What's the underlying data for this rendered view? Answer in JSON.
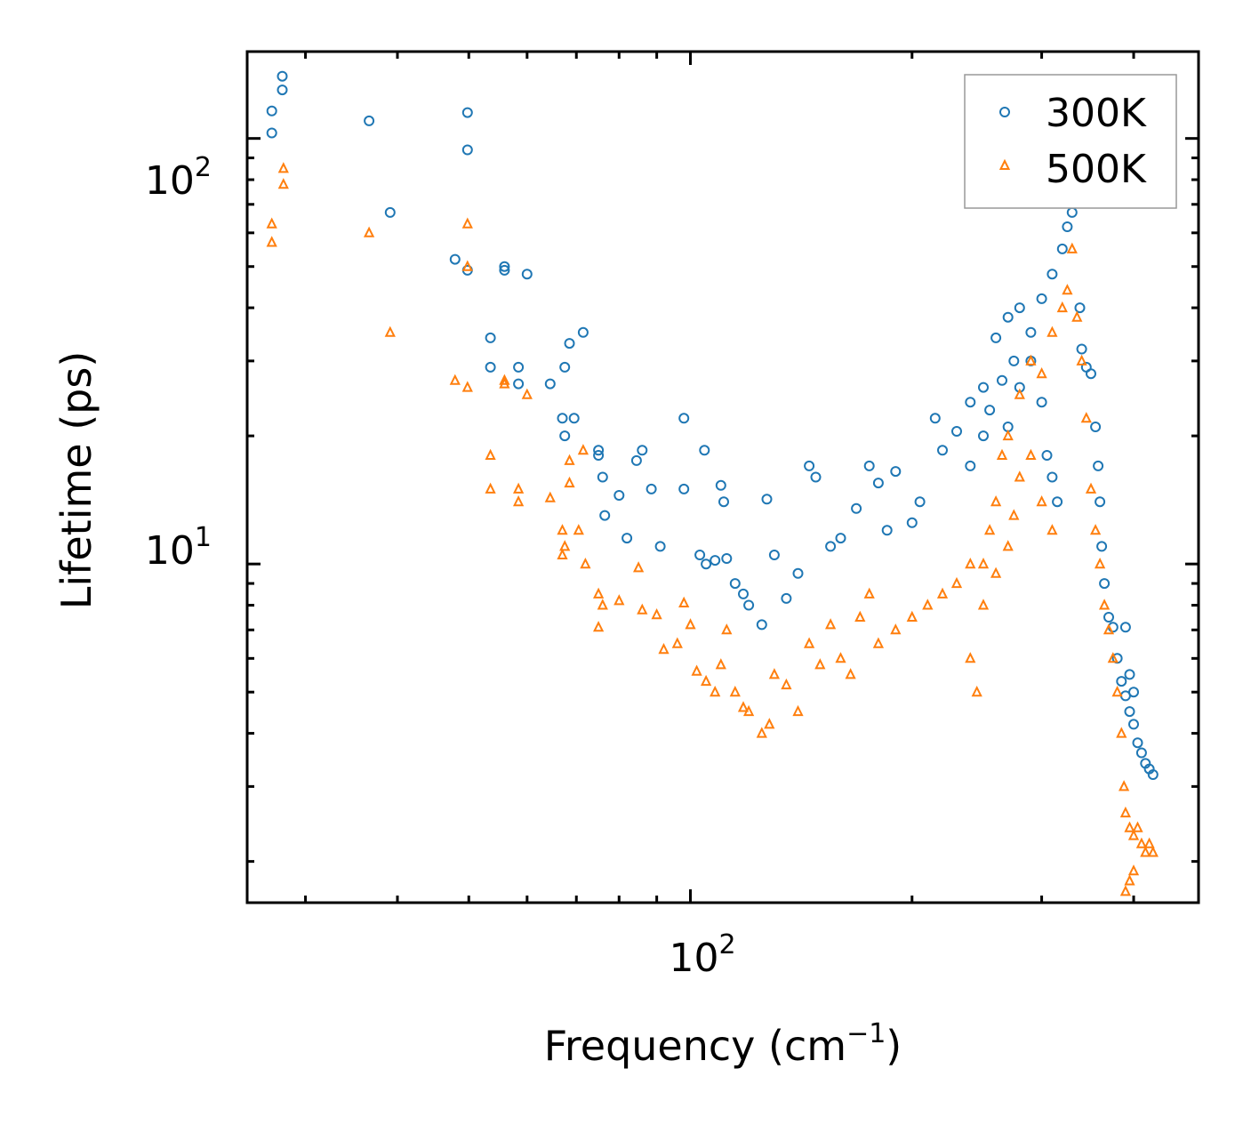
{
  "chart_data": {
    "type": "scatter",
    "title": "",
    "xlabel": "Frequency (cm",
    "xlabel_sup": "−1",
    "xlabel_end": ")",
    "ylabel": "Lifetime (ps)",
    "xscale": "log",
    "yscale": "log",
    "xlim": [
      25,
      490
    ],
    "ylim": [
      1.6,
      160
    ],
    "x_major_ticks": [
      {
        "value": 100,
        "base": "10",
        "exp": "2"
      }
    ],
    "y_major_ticks": [
      {
        "value": 10,
        "base": "10",
        "exp": "1"
      },
      {
        "value": 100,
        "base": "10",
        "exp": "2"
      }
    ],
    "legend_position": "top-right",
    "series": [
      {
        "name": "300K",
        "marker": "circle",
        "color": "#1f77b4",
        "points": [
          [
            27.0,
            103
          ],
          [
            27.0,
            116
          ],
          [
            27.9,
            140
          ],
          [
            27.9,
            130
          ],
          [
            36.6,
            110
          ],
          [
            39.1,
            67
          ],
          [
            47.9,
            52
          ],
          [
            49.8,
            94
          ],
          [
            49.8,
            115
          ],
          [
            49.8,
            49
          ],
          [
            53.5,
            34
          ],
          [
            53.5,
            29
          ],
          [
            55.9,
            50
          ],
          [
            55.9,
            49
          ],
          [
            58.4,
            29
          ],
          [
            58.4,
            26.5
          ],
          [
            60.0,
            48
          ],
          [
            64.5,
            26.5
          ],
          [
            67.0,
            22
          ],
          [
            67.5,
            29
          ],
          [
            67.5,
            20
          ],
          [
            68.5,
            33
          ],
          [
            69.5,
            22
          ],
          [
            71.5,
            35
          ],
          [
            75.0,
            18.5
          ],
          [
            75.0,
            18
          ],
          [
            76.0,
            16
          ],
          [
            76.5,
            13
          ],
          [
            80.0,
            14.5
          ],
          [
            82.0,
            11.5
          ],
          [
            84.5,
            17.5
          ],
          [
            86.0,
            18.5
          ],
          [
            88.5,
            15
          ],
          [
            91.0,
            11
          ],
          [
            98.0,
            22
          ],
          [
            98.0,
            15
          ],
          [
            103.0,
            10.5
          ],
          [
            104.5,
            18.5
          ],
          [
            105.0,
            10
          ],
          [
            108.0,
            10.2
          ],
          [
            110.0,
            15.3
          ],
          [
            111.0,
            14
          ],
          [
            112.0,
            10.3
          ],
          [
            115.0,
            9
          ],
          [
            118.0,
            8.5
          ],
          [
            120.0,
            8
          ],
          [
            125.0,
            7.2
          ],
          [
            127.0,
            14.2
          ],
          [
            130.0,
            10.5
          ],
          [
            135.0,
            8.3
          ],
          [
            140.0,
            9.5
          ],
          [
            145.0,
            17
          ],
          [
            148.0,
            16
          ],
          [
            155.0,
            11
          ],
          [
            160.0,
            11.5
          ],
          [
            168.0,
            13.5
          ],
          [
            175.0,
            17
          ],
          [
            180.0,
            15.5
          ],
          [
            185.0,
            12
          ],
          [
            190.0,
            16.5
          ],
          [
            200.0,
            12.5
          ],
          [
            205.0,
            14
          ],
          [
            215.0,
            22
          ],
          [
            220.0,
            18.5
          ],
          [
            230.0,
            20.5
          ],
          [
            240.0,
            24
          ],
          [
            250.0,
            26
          ],
          [
            260.0,
            34
          ],
          [
            270.0,
            38
          ],
          [
            280.0,
            40
          ],
          [
            290.0,
            35
          ],
          [
            300.0,
            42
          ],
          [
            310.0,
            48
          ],
          [
            320.0,
            55
          ],
          [
            325.0,
            62
          ],
          [
            325.0,
            71
          ],
          [
            330.0,
            67
          ],
          [
            338.0,
            40
          ],
          [
            340.0,
            32
          ],
          [
            345.0,
            29
          ],
          [
            350.0,
            28
          ],
          [
            355.0,
            21
          ],
          [
            358.0,
            17
          ],
          [
            360.0,
            14
          ],
          [
            362.0,
            11
          ],
          [
            365.0,
            9
          ],
          [
            370.0,
            7.5
          ],
          [
            375.0,
            7.1
          ],
          [
            380.0,
            6
          ],
          [
            385.0,
            5.3
          ],
          [
            390.0,
            4.9
          ],
          [
            395.0,
            4.5
          ],
          [
            400.0,
            4.2
          ],
          [
            405.0,
            3.8
          ],
          [
            410.0,
            3.6
          ],
          [
            415.0,
            3.4
          ],
          [
            420.0,
            3.3
          ],
          [
            425.0,
            3.2
          ],
          [
            390.0,
            7.1
          ],
          [
            395.0,
            5.5
          ],
          [
            400.0,
            5.0
          ],
          [
            270.0,
            21
          ],
          [
            280.0,
            26
          ],
          [
            290.0,
            30
          ],
          [
            300.0,
            24
          ],
          [
            305.0,
            18
          ],
          [
            310.0,
            16
          ],
          [
            315.0,
            14
          ],
          [
            240.0,
            17
          ],
          [
            250.0,
            20
          ],
          [
            255.0,
            23
          ],
          [
            265.0,
            27
          ],
          [
            275.0,
            30
          ]
        ]
      },
      {
        "name": "500K",
        "marker": "triangle",
        "color": "#ff7f0e",
        "points": [
          [
            27.0,
            63
          ],
          [
            27.0,
            57
          ],
          [
            28.0,
            85
          ],
          [
            28.0,
            78
          ],
          [
            36.6,
            60
          ],
          [
            39.1,
            35
          ],
          [
            47.9,
            27
          ],
          [
            49.8,
            26
          ],
          [
            49.8,
            50
          ],
          [
            49.8,
            63
          ],
          [
            53.5,
            18
          ],
          [
            53.5,
            15
          ],
          [
            55.9,
            27
          ],
          [
            55.9,
            26.5
          ],
          [
            58.4,
            15
          ],
          [
            58.4,
            14
          ],
          [
            60.0,
            25
          ],
          [
            64.5,
            14.3
          ],
          [
            67.0,
            12
          ],
          [
            67.5,
            11
          ],
          [
            67.0,
            10.5
          ],
          [
            68.5,
            17.5
          ],
          [
            68.5,
            15.5
          ],
          [
            70.5,
            12
          ],
          [
            71.5,
            18.5
          ],
          [
            72.0,
            10
          ],
          [
            75.0,
            8.5
          ],
          [
            75.0,
            7.1
          ],
          [
            76.0,
            8
          ],
          [
            80.0,
            8.2
          ],
          [
            85.0,
            9.8
          ],
          [
            86.0,
            7.8
          ],
          [
            90.0,
            7.6
          ],
          [
            92.0,
            6.3
          ],
          [
            96.0,
            6.5
          ],
          [
            98.0,
            8.1
          ],
          [
            100.0,
            7.2
          ],
          [
            102.0,
            5.6
          ],
          [
            105.0,
            5.3
          ],
          [
            108.0,
            5.0
          ],
          [
            110.0,
            5.8
          ],
          [
            112.0,
            7.0
          ],
          [
            115.0,
            5.0
          ],
          [
            118.0,
            4.6
          ],
          [
            120.0,
            4.5
          ],
          [
            125.0,
            4.0
          ],
          [
            128.0,
            4.2
          ],
          [
            130.0,
            5.5
          ],
          [
            135.0,
            5.2
          ],
          [
            140.0,
            4.5
          ],
          [
            145.0,
            6.5
          ],
          [
            150.0,
            5.8
          ],
          [
            155.0,
            7.2
          ],
          [
            160.0,
            6.0
          ],
          [
            165.0,
            5.5
          ],
          [
            170.0,
            7.5
          ],
          [
            175.0,
            8.5
          ],
          [
            180.0,
            6.5
          ],
          [
            190.0,
            7.0
          ],
          [
            200.0,
            7.5
          ],
          [
            210.0,
            8.0
          ],
          [
            220.0,
            8.5
          ],
          [
            230.0,
            9.0
          ],
          [
            240.0,
            6.0
          ],
          [
            245.0,
            5.0
          ],
          [
            250.0,
            10.0
          ],
          [
            255.0,
            12.0
          ],
          [
            260.0,
            14.0
          ],
          [
            265.0,
            18.0
          ],
          [
            270.0,
            20.0
          ],
          [
            280.0,
            25.0
          ],
          [
            290.0,
            30.0
          ],
          [
            300.0,
            28.0
          ],
          [
            310.0,
            35.0
          ],
          [
            320.0,
            40.0
          ],
          [
            325.0,
            44.0
          ],
          [
            330.0,
            55.0
          ],
          [
            335.0,
            38.0
          ],
          [
            340.0,
            30.0
          ],
          [
            345.0,
            22.0
          ],
          [
            350.0,
            15.0
          ],
          [
            355.0,
            12.0
          ],
          [
            360.0,
            10.0
          ],
          [
            365.0,
            8.0
          ],
          [
            370.0,
            7.0
          ],
          [
            375.0,
            6.0
          ],
          [
            380.0,
            5.0
          ],
          [
            385.0,
            4.0
          ],
          [
            388.0,
            3.0
          ],
          [
            390.0,
            2.6
          ],
          [
            395.0,
            2.4
          ],
          [
            400.0,
            2.3
          ],
          [
            405.0,
            2.4
          ],
          [
            410.0,
            2.2
          ],
          [
            415.0,
            2.1
          ],
          [
            420.0,
            2.2
          ],
          [
            425.0,
            2.1
          ],
          [
            395.0,
            1.8
          ],
          [
            400.0,
            1.9
          ],
          [
            390.0,
            1.7
          ],
          [
            280.0,
            16.0
          ],
          [
            290.0,
            18.0
          ],
          [
            300.0,
            14.0
          ],
          [
            310.0,
            12.0
          ],
          [
            240.0,
            10.0
          ],
          [
            250.0,
            8.0
          ],
          [
            260.0,
            9.5
          ],
          [
            270.0,
            11.0
          ],
          [
            275.0,
            13.0
          ]
        ]
      }
    ]
  }
}
